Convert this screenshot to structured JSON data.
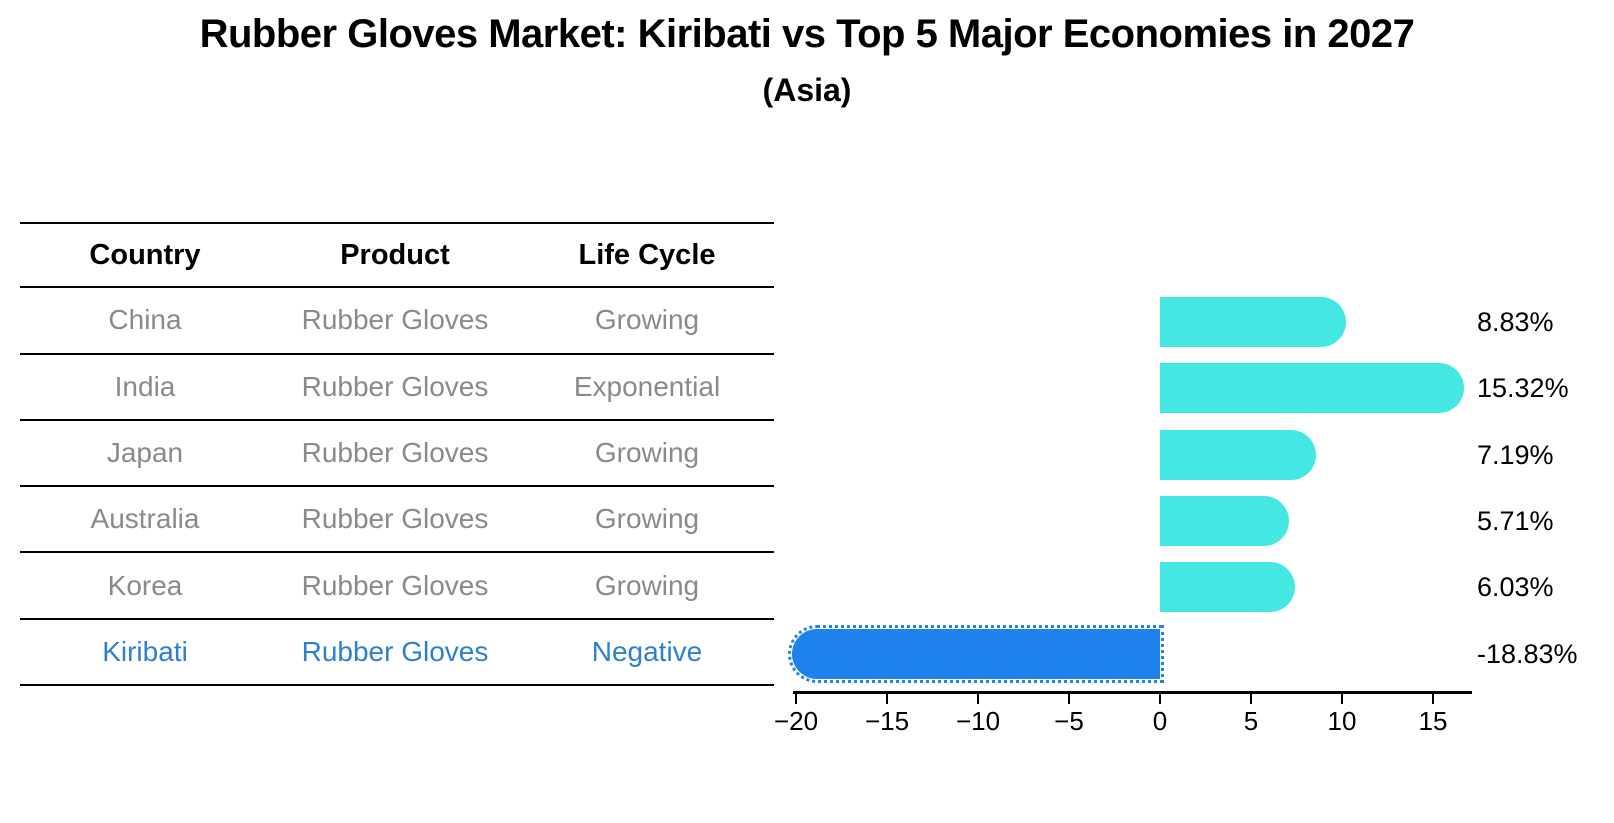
{
  "title": "Rubber Gloves Market: Kiribati vs Top 5 Major Economies in 2027",
  "subtitle": "(Asia)",
  "table": {
    "headers": [
      "Country",
      "Product",
      "Life Cycle"
    ],
    "rows": [
      {
        "country": "China",
        "product": "Rubber Gloves",
        "life_cycle": "Growing",
        "highlight": false
      },
      {
        "country": "India",
        "product": "Rubber Gloves",
        "life_cycle": "Exponential",
        "highlight": false
      },
      {
        "country": "Japan",
        "product": "Rubber Gloves",
        "life_cycle": "Growing",
        "highlight": false
      },
      {
        "country": "Australia",
        "product": "Rubber Gloves",
        "life_cycle": "Growing",
        "highlight": false
      },
      {
        "country": "Korea",
        "product": "Rubber Gloves",
        "life_cycle": "Growing",
        "highlight": false
      },
      {
        "country": "Kiribati",
        "product": "Rubber Gloves",
        "life_cycle": "Negative",
        "highlight": true
      }
    ]
  },
  "chart_data": {
    "type": "bar",
    "orientation": "horizontal",
    "title": "Rubber Gloves Market: Kiribati vs Top 5 Major Economies in 2027",
    "subtitle": "(Asia)",
    "categories": [
      "China",
      "India",
      "Japan",
      "Australia",
      "Korea",
      "Kiribati"
    ],
    "values": [
      8.83,
      15.32,
      7.19,
      5.71,
      6.03,
      -18.83
    ],
    "value_labels": [
      "8.83%",
      "15.32%",
      "7.19%",
      "5.71%",
      "6.03%",
      "-18.83%"
    ],
    "x_ticks": [
      -20,
      -15,
      -10,
      -5,
      0,
      5,
      10,
      15
    ],
    "xlim": [
      -20.6,
      17.1
    ],
    "xlabel": "",
    "ylabel": "",
    "grid": false,
    "legend": false,
    "colors": {
      "positive_bar": "#44e7e2",
      "negative_bar": "#1e82ec",
      "highlight_text": "#2e7fd0",
      "table_text": "#8a8a8a",
      "axis": "#000000"
    }
  }
}
